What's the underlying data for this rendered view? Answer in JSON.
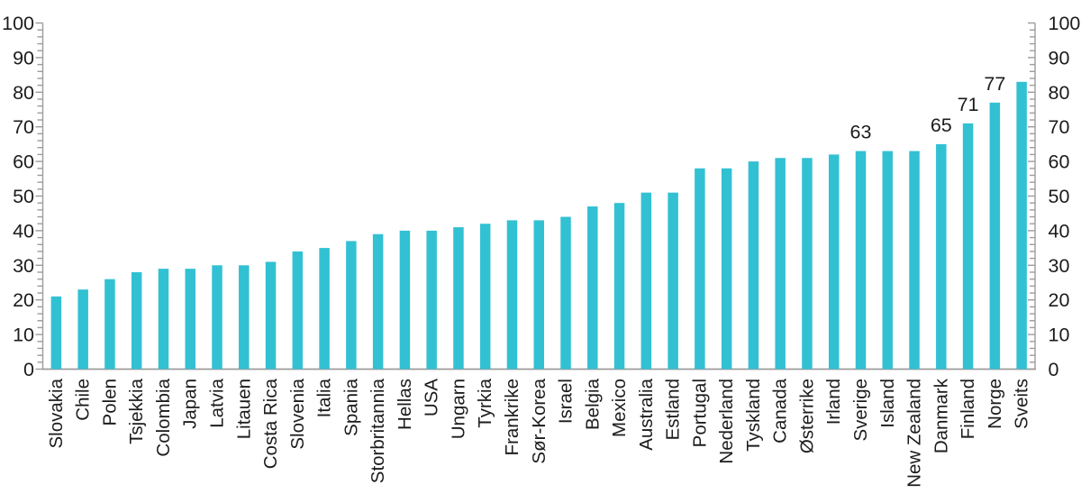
{
  "chart_data": {
    "type": "bar",
    "title": "",
    "xlabel": "",
    "ylabel": "",
    "categories": [
      "Slovakia",
      "Chile",
      "Polen",
      "Tsjekkia",
      "Colombia",
      "Japan",
      "Latvia",
      "Litauen",
      "Costa Rica",
      "Slovenia",
      "Italia",
      "Spania",
      "Storbritannia",
      "Hellas",
      "USA",
      "Ungarn",
      "Tyrkia",
      "Frankrike",
      "Sør-Korea",
      "Israel",
      "Belgia",
      "Mexico",
      "Australia",
      "Estland",
      "Portugal",
      "Nederland",
      "Tyskland",
      "Canada",
      "Østerrike",
      "Irland",
      "Sverige",
      "Island",
      "New Zealand",
      "Danmark",
      "Finland",
      "Norge",
      "Sveits"
    ],
    "values": [
      21,
      23,
      26,
      28,
      29,
      29,
      30,
      30,
      31,
      34,
      35,
      37,
      39,
      40,
      40,
      41,
      42,
      43,
      43,
      44,
      47,
      48,
      51,
      51,
      58,
      58,
      60,
      61,
      61,
      62,
      63,
      63,
      63,
      65,
      71,
      77,
      83
    ],
    "labeled_categories": [
      "Sverige",
      "Danmark",
      "Finland",
      "Norge"
    ],
    "labeled_values": {
      "Sverige": 63,
      "Danmark": 65,
      "Finland": 71,
      "Norge": 77
    },
    "ylim": [
      0,
      100
    ],
    "y_tick_major": 10,
    "y_tick_minor": 2,
    "y_tick_labels": [
      "0",
      "10",
      "20",
      "30",
      "40",
      "50",
      "60",
      "70",
      "80",
      "90",
      "100"
    ],
    "y_axis_left": true,
    "y_axis_right": true,
    "x_labels_rotated_degrees": 90,
    "grid": false,
    "legend": "none",
    "colors": {
      "bar": "#32c1d3",
      "axis": "#9c9c9c",
      "text": "#1c1c1c"
    }
  }
}
